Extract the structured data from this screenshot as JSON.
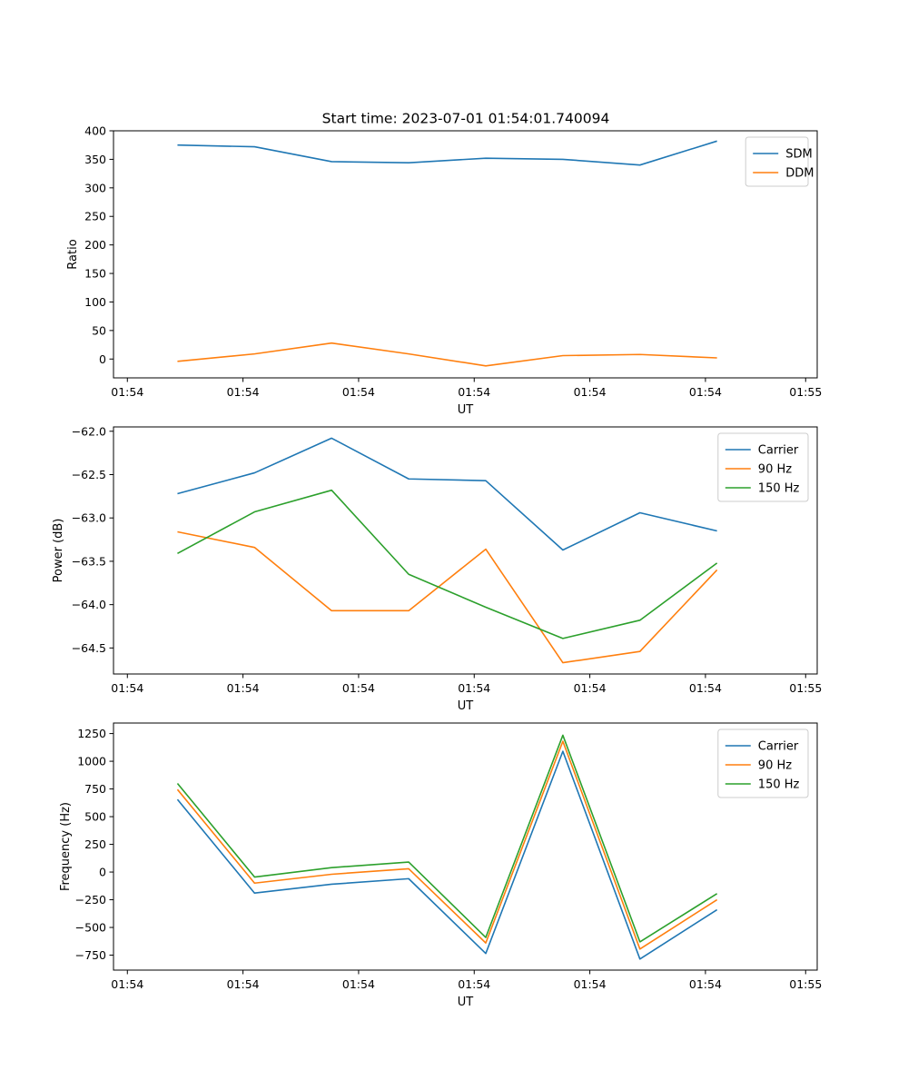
{
  "chart_data": [
    {
      "type": "line",
      "title": "Start time: 2023-07-01 01:54:01.740094",
      "xlabel": "UT",
      "ylabel": "Ratio",
      "x": [
        1,
        2,
        3,
        4,
        5,
        6,
        7,
        8
      ],
      "xlim": [
        0.17,
        9.3
      ],
      "ylim": [
        -33,
        400
      ],
      "xticks": [
        0.35,
        1.85,
        3.35,
        4.85,
        6.35,
        7.85,
        9.15
      ],
      "xtick_labels": [
        "01:54",
        "01:54",
        "01:54",
        "01:54",
        "01:54",
        "01:54",
        "01:55"
      ],
      "yticks": [
        0,
        50,
        100,
        150,
        200,
        250,
        300,
        350,
        400
      ],
      "ytick_labels": [
        "0",
        "50",
        "100",
        "150",
        "200",
        "250",
        "300",
        "350",
        "400"
      ],
      "legend_position": "top-right",
      "series": [
        {
          "name": "SDM",
          "color": "#1f77b4",
          "values": [
            375,
            372,
            346,
            344,
            352,
            350,
            340,
            382
          ]
        },
        {
          "name": "DDM",
          "color": "#ff7f0e",
          "values": [
            -4,
            9,
            28,
            9,
            -12,
            6,
            8,
            2
          ]
        }
      ]
    },
    {
      "type": "line",
      "title": "",
      "xlabel": "UT",
      "ylabel": "Power (dB)",
      "x": [
        1,
        2,
        3,
        4,
        5,
        6,
        7,
        8
      ],
      "xlim": [
        0.17,
        9.3
      ],
      "ylim": [
        -64.8,
        -61.95
      ],
      "xticks": [
        0.35,
        1.85,
        3.35,
        4.85,
        6.35,
        7.85,
        9.15
      ],
      "xtick_labels": [
        "01:54",
        "01:54",
        "01:54",
        "01:54",
        "01:54",
        "01:54",
        "01:55"
      ],
      "yticks": [
        -64.5,
        -64.0,
        -63.5,
        -63.0,
        -62.5,
        -62.0
      ],
      "ytick_labels": [
        "−64.5",
        "−64.0",
        "−63.5",
        "−63.0",
        "−62.5",
        "−62.0"
      ],
      "legend_position": "top-right",
      "series": [
        {
          "name": "Carrier",
          "color": "#1f77b4",
          "values": [
            -62.72,
            -62.48,
            -62.08,
            -62.55,
            -62.57,
            -63.37,
            -62.94,
            -63.15
          ]
        },
        {
          "name": "90 Hz",
          "color": "#ff7f0e",
          "values": [
            -63.16,
            -63.34,
            -64.07,
            -64.07,
            -63.36,
            -64.67,
            -64.54,
            -63.6
          ]
        },
        {
          "name": "150 Hz",
          "color": "#2ca02c",
          "values": [
            -63.41,
            -62.93,
            -62.68,
            -63.65,
            -64.03,
            -64.39,
            -64.18,
            -63.52
          ]
        }
      ]
    },
    {
      "type": "line",
      "title": "",
      "xlabel": "UT",
      "ylabel": "Frequency (Hz)",
      "x": [
        1,
        2,
        3,
        4,
        5,
        6,
        7,
        8
      ],
      "xlim": [
        0.17,
        9.3
      ],
      "ylim": [
        -885,
        1345
      ],
      "xticks": [
        0.35,
        1.85,
        3.35,
        4.85,
        6.35,
        7.85,
        9.15
      ],
      "xtick_labels": [
        "01:54",
        "01:54",
        "01:54",
        "01:54",
        "01:54",
        "01:54",
        "01:55"
      ],
      "yticks": [
        -750,
        -500,
        -250,
        0,
        250,
        500,
        750,
        1000,
        1250
      ],
      "ytick_labels": [
        "−750",
        "−500",
        "−250",
        "0",
        "250",
        "500",
        "750",
        "1000",
        "1250"
      ],
      "legend_position": "top-right",
      "series": [
        {
          "name": "Carrier",
          "color": "#1f77b4",
          "values": [
            655,
            -190,
            -110,
            -60,
            -735,
            1090,
            -785,
            -340
          ]
        },
        {
          "name": "90 Hz",
          "color": "#ff7f0e",
          "values": [
            745,
            -100,
            -20,
            30,
            -640,
            1180,
            -695,
            -250
          ]
        },
        {
          "name": "150 Hz",
          "color": "#2ca02c",
          "values": [
            800,
            -45,
            40,
            90,
            -590,
            1235,
            -630,
            -195
          ]
        }
      ]
    }
  ]
}
